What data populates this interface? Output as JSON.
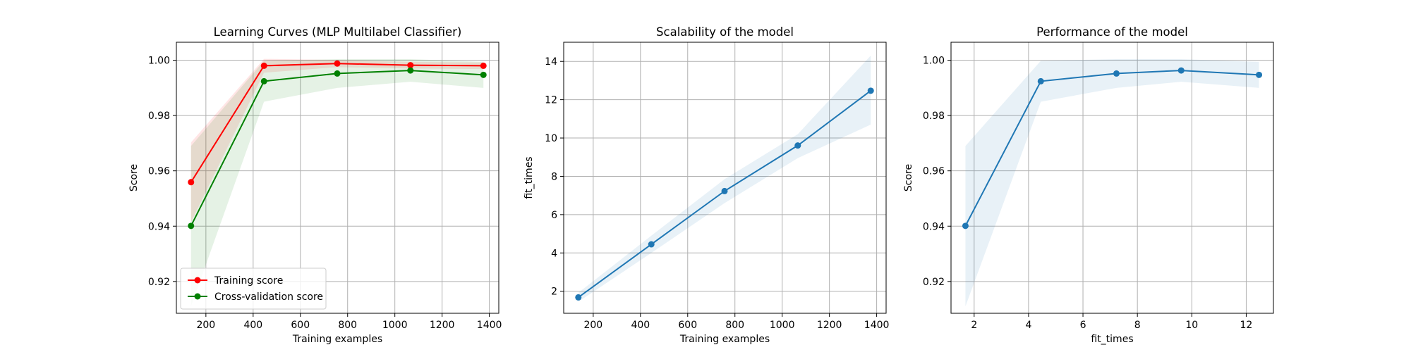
{
  "chart_data": [
    {
      "type": "line",
      "title": "Learning Curves (MLP Multilabel Classifier)",
      "xlabel": "Training examples",
      "ylabel": "Score",
      "xlim": [
        75,
        1440
      ],
      "ylim": [
        0.9085,
        1.0065
      ],
      "xticks": [
        200,
        400,
        600,
        800,
        1000,
        1200,
        1400
      ],
      "yticks": [
        0.92,
        0.94,
        0.96,
        0.98,
        1.0
      ],
      "xtick_labels": [
        "200",
        "400",
        "600",
        "800",
        "1000",
        "1200",
        "1400"
      ],
      "ytick_labels": [
        "0.92",
        "0.94",
        "0.96",
        "0.98",
        "1.00"
      ],
      "grid": true,
      "legend_position": "lower-left",
      "x": [
        137,
        446,
        756,
        1066,
        1375
      ],
      "series": [
        {
          "name": "Training score",
          "color": "#ff0000",
          "values": [
            0.9559,
            0.998,
            0.9988,
            0.9982,
            0.998
          ],
          "lower": [
            0.9415,
            0.9955,
            0.9975,
            0.997,
            0.9968
          ],
          "upper": [
            0.9703,
            1.0005,
            1.0001,
            0.9994,
            0.9992
          ]
        },
        {
          "name": "Cross-validation score",
          "color": "#008000",
          "values": [
            0.9401,
            0.9924,
            0.9952,
            0.9963,
            0.9947
          ],
          "lower": [
            0.911,
            0.985,
            0.99,
            0.9922,
            0.99
          ],
          "upper": [
            0.969,
            0.9998,
            1.0004,
            1.0004,
            0.9994
          ]
        }
      ]
    },
    {
      "type": "line",
      "title": "Scalability of the model",
      "xlabel": "Training examples",
      "ylabel": "fit_times",
      "xlim": [
        75,
        1440
      ],
      "ylim": [
        0.85,
        15.0
      ],
      "xticks": [
        200,
        400,
        600,
        800,
        1000,
        1200,
        1400
      ],
      "yticks": [
        2,
        4,
        6,
        8,
        10,
        12,
        14
      ],
      "xtick_labels": [
        "200",
        "400",
        "600",
        "800",
        "1000",
        "1200",
        "1400"
      ],
      "ytick_labels": [
        "2",
        "4",
        "6",
        "8",
        "10",
        "12",
        "14"
      ],
      "grid": true,
      "x": [
        137,
        446,
        756,
        1066,
        1375
      ],
      "series": [
        {
          "color": "#1f77b4",
          "values": [
            1.68,
            4.45,
            7.23,
            9.61,
            12.47
          ],
          "lower": [
            1.45,
            4.0,
            6.6,
            8.95,
            10.7
          ],
          "upper": [
            1.92,
            4.9,
            7.85,
            10.2,
            14.3
          ]
        }
      ]
    },
    {
      "type": "line",
      "title": "Performance of the model",
      "xlabel": "fit_times",
      "ylabel": "Score",
      "xlim": [
        1.15,
        13.0
      ],
      "ylim": [
        0.9085,
        1.0065
      ],
      "xticks": [
        2,
        4,
        6,
        8,
        10,
        12
      ],
      "yticks": [
        0.92,
        0.94,
        0.96,
        0.98,
        1.0
      ],
      "xtick_labels": [
        "2",
        "4",
        "6",
        "8",
        "10",
        "12"
      ],
      "ytick_labels": [
        "0.92",
        "0.94",
        "0.96",
        "0.98",
        "1.00"
      ],
      "grid": true,
      "x": [
        1.68,
        4.45,
        7.23,
        9.61,
        12.47
      ],
      "series": [
        {
          "color": "#1f77b4",
          "values": [
            0.9401,
            0.9924,
            0.9952,
            0.9963,
            0.9947
          ],
          "lower": [
            0.911,
            0.985,
            0.99,
            0.9922,
            0.99
          ],
          "upper": [
            0.969,
            0.9998,
            1.0004,
            1.0004,
            0.9994
          ]
        }
      ]
    }
  ]
}
